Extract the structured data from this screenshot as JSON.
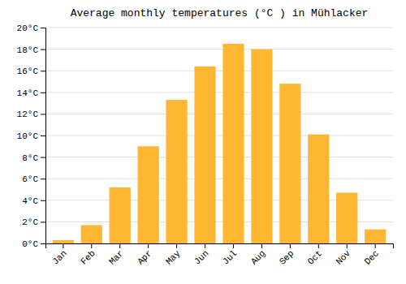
{
  "chart_data": {
    "type": "bar",
    "title": "Average monthly temperatures (°C ) in Mühlacker",
    "categories": [
      "Jan",
      "Feb",
      "Mar",
      "Apr",
      "May",
      "Jun",
      "Jul",
      "Aug",
      "Sep",
      "Oct",
      "Nov",
      "Dec"
    ],
    "values": [
      0.3,
      1.7,
      5.2,
      9.0,
      13.3,
      16.4,
      18.5,
      18.0,
      14.8,
      10.1,
      4.7,
      1.3
    ],
    "color": "#FFB733",
    "ylim": [
      0,
      20
    ],
    "yticks": [
      {
        "value": 0,
        "label": "0°C"
      },
      {
        "value": 2,
        "label": "2°C"
      },
      {
        "value": 4,
        "label": "4°C"
      },
      {
        "value": 6,
        "label": "6°C"
      },
      {
        "value": 8,
        "label": "8°C"
      },
      {
        "value": 10,
        "label": "10°C"
      },
      {
        "value": 12,
        "label": "12°C"
      },
      {
        "value": 14,
        "label": "14°C"
      },
      {
        "value": 16,
        "label": "16°C"
      },
      {
        "value": 18,
        "label": "18°C"
      },
      {
        "value": 20,
        "label": "20°C"
      }
    ],
    "grid": true
  }
}
